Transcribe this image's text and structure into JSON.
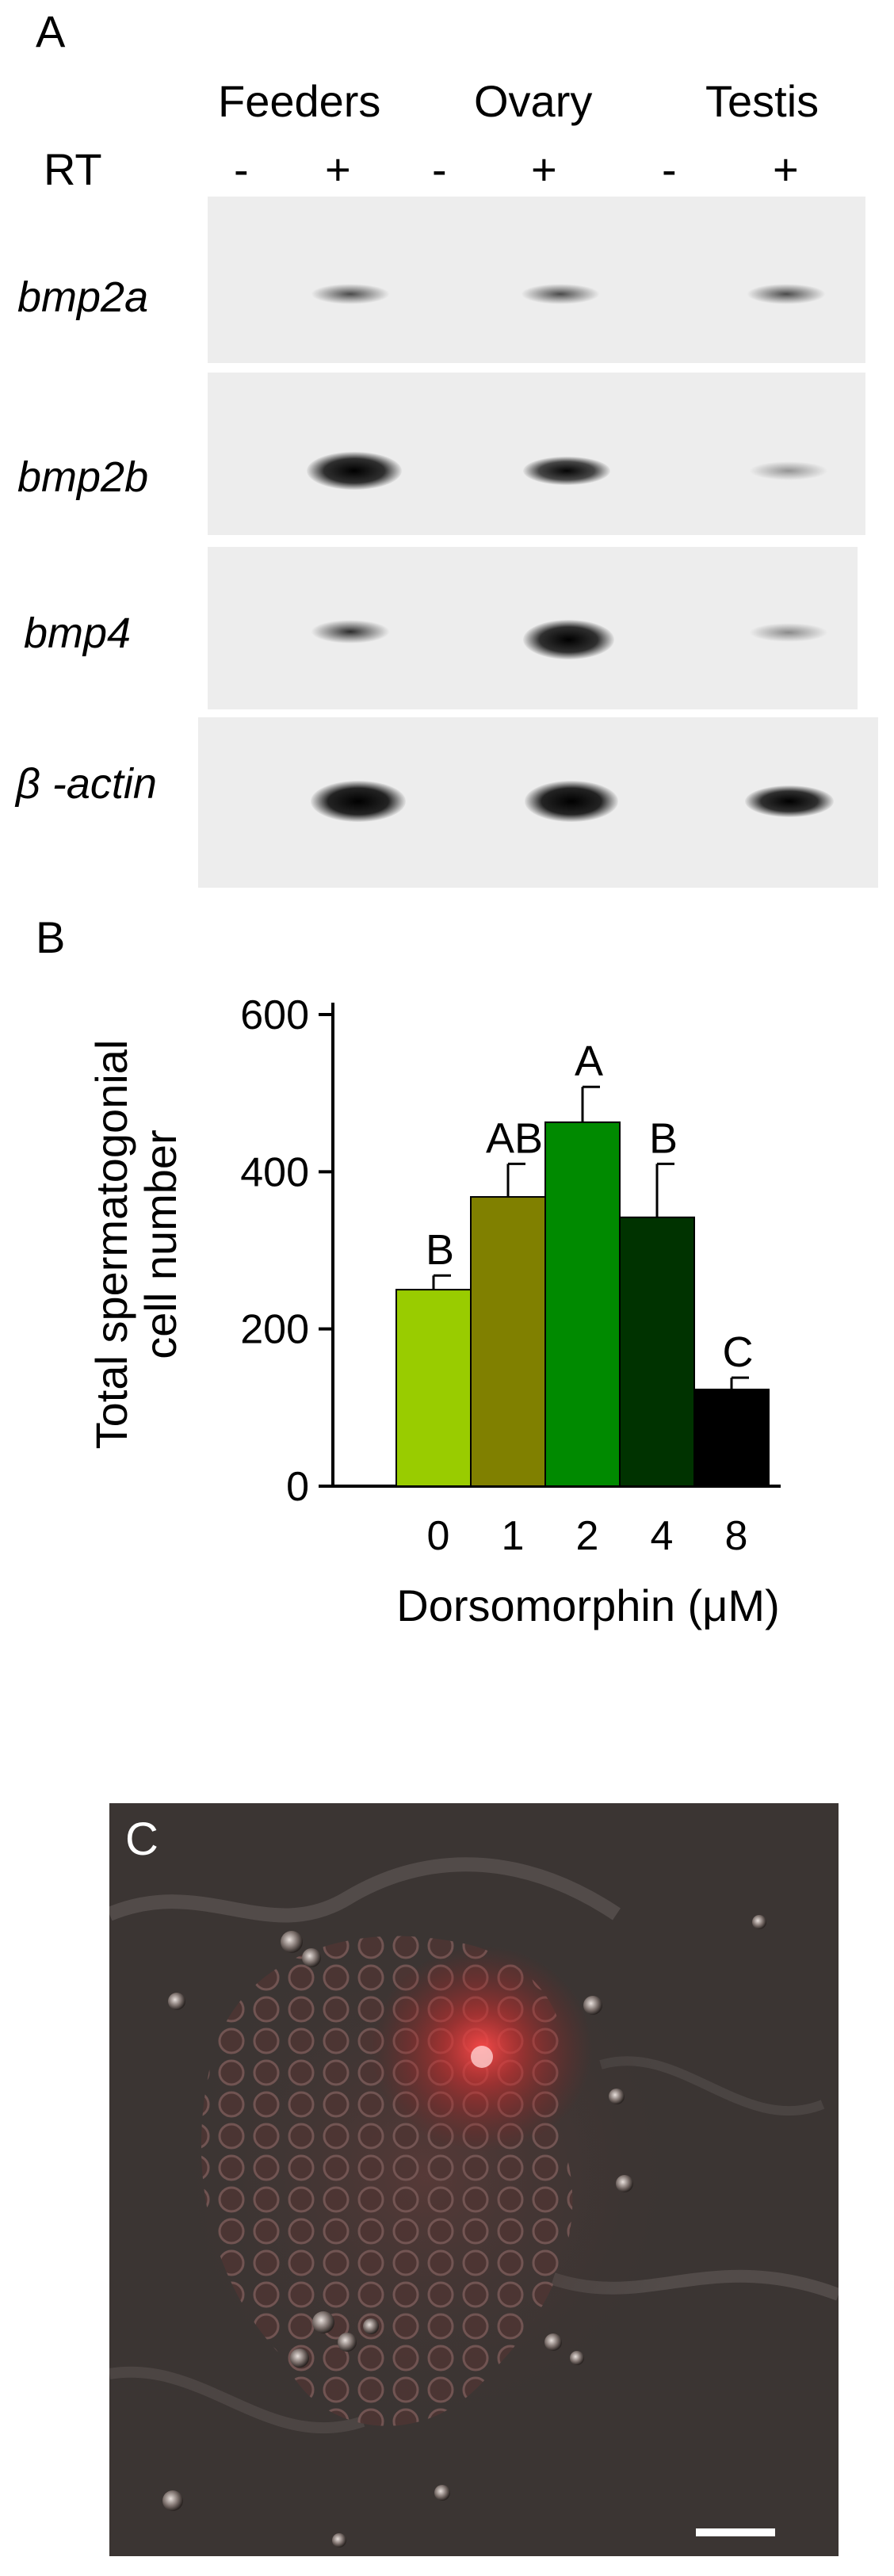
{
  "panel_a": {
    "letter": "A",
    "headers": [
      "Feeders",
      "Ovary",
      "Testis"
    ],
    "rt_label": "RT",
    "lanes": [
      "-",
      "+",
      "-",
      "+",
      "-",
      "+"
    ],
    "genes": [
      "bmp2a",
      "bmp2b",
      "bmp4",
      "β -actin"
    ],
    "band_intensity": {
      "bmp2a": [
        0,
        0.55,
        0,
        0.55,
        0,
        0.55
      ],
      "bmp2b": [
        0,
        1.0,
        0,
        0.9,
        0,
        0.25
      ],
      "bmp4": [
        0,
        0.75,
        0,
        1.0,
        0,
        0.3
      ],
      "β -actin": [
        0,
        1.0,
        0,
        1.0,
        0,
        0.95
      ]
    }
  },
  "panel_b": {
    "letter": "B"
  },
  "chart_data": {
    "type": "bar",
    "categories": [
      "0",
      "1",
      "2",
      "4",
      "8"
    ],
    "values": [
      250,
      368,
      463,
      342,
      123
    ],
    "errors": [
      18,
      42,
      45,
      68,
      15
    ],
    "significance": [
      "B",
      "AB",
      "A",
      "B",
      "C"
    ],
    "colors": [
      "#99cc00",
      "#808000",
      "#008a00",
      "#003300",
      "#000000"
    ],
    "xlabel": "Dorsomorphin (μM)",
    "ylabel_lines": [
      "Total spermatogonial",
      "cell number"
    ],
    "yticks": [
      0,
      200,
      400,
      600
    ],
    "ylim": [
      0,
      620
    ]
  },
  "panel_c": {
    "letter": "C",
    "scale_bar_color": "#ffffff"
  }
}
